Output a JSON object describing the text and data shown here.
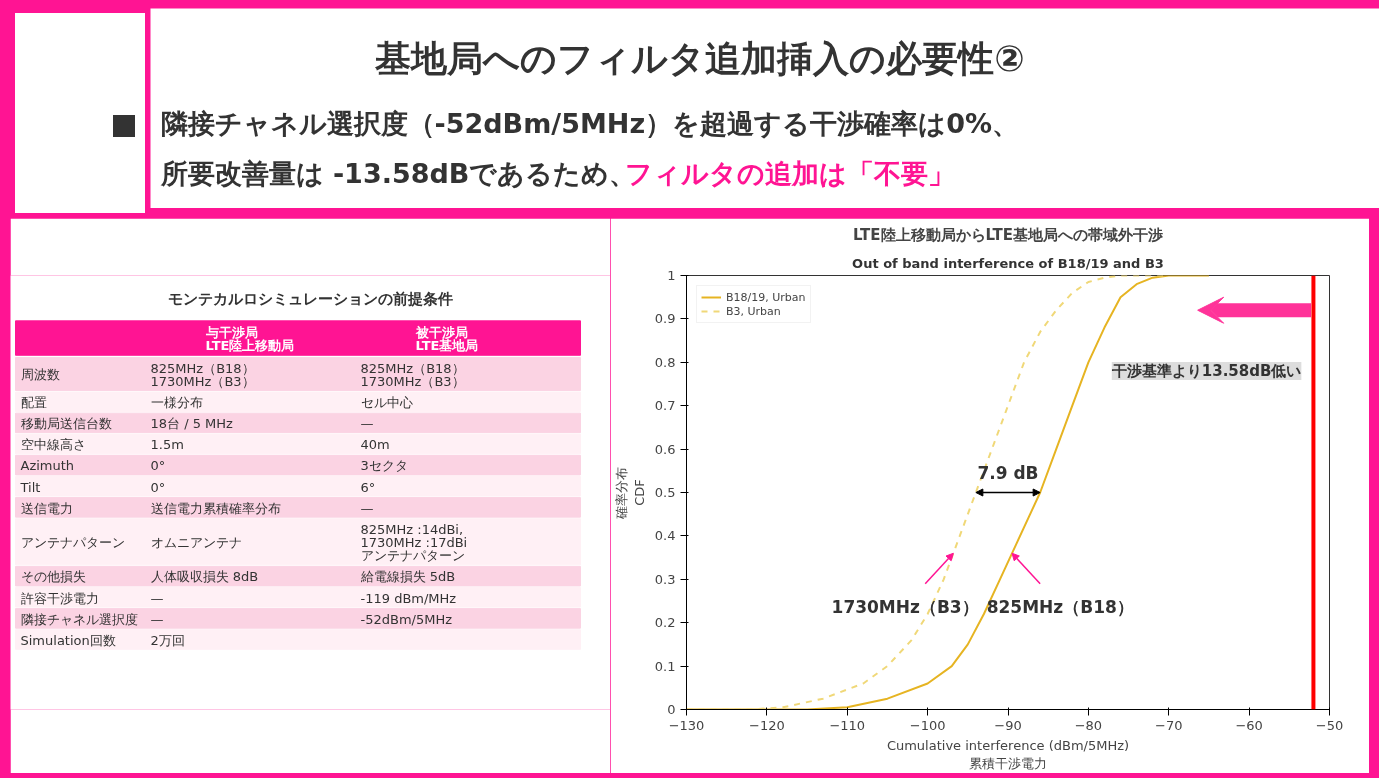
{
  "chart_data": [
    {
      "type": "other",
      "title": "基地局へのフィルタ追加挿入の必要性②",
      "annotations": [
        "隣接チャネル選択度（-52dBm/5MHz）を超過する干渉確率は0%、",
        "所要改善量は -13.58dBであるため、",
        "フィルタの追加は「不要」"
      ],
      "colors": [
        "#333333",
        "#333333",
        "#ff1493"
      ]
    },
    {
      "type": "other",
      "title": "モンテカルロシミュレーションの前提条件",
      "categories": [
        "与干渉局\nLTE陸上移動局",
        "被干渉局\nLTE基地局"
      ],
      "y_categories": [
        "周波数",
        "配置",
        "移動局送信台数",
        "空中線高さ",
        "Azimuth",
        "Tilt",
        "送信電力",
        "アンテナパターン",
        "その他損失",
        "許容干渉電力",
        "隣接チャネル選択度",
        "Simulation回数"
      ],
      "cell_labels": [
        [
          "825MHz（B18）\n1730MHz（B3）",
          "825MHz（B18）\n1730MHz（B3）"
        ],
        [
          "一様分布",
          "セル中心"
        ],
        [
          "18台 / 5 MHz",
          "—"
        ],
        [
          "1.5m",
          "40m"
        ],
        [
          "0°",
          "3セクタ"
        ],
        [
          "0°",
          "6°"
        ],
        [
          "送信電力累積確率分布",
          "—"
        ],
        [
          "オムニアンテナ",
          "825MHz :14dBi,\n1730MHz :17dBi\nアンテナパターン"
        ],
        [
          "人体吸収損失 8dB",
          "給電線損失 5dB"
        ],
        [
          "—",
          "-119 dBm/MHz"
        ],
        [
          "—",
          "-52dBm/5MHz"
        ],
        [
          "2万回",
          null
        ]
      ],
      "color": "#ff1493"
    },
    {
      "type": "line",
      "title": "LTE陸上移動局からLTE基地局への帯域外干渉",
      "subtitle": "Out of band interference of B18/19 and B3",
      "xlabel": "Cumulative interference (dBm/5MHz)\n累積干渉電力",
      "ylabel": "確率分布\nCDF",
      "xlim": [
        -130,
        -50
      ],
      "xticks": [
        -130,
        -120,
        -110,
        -100,
        -90,
        -80,
        -70,
        -60,
        -50
      ],
      "ylim": [
        0,
        1
      ],
      "yticks": [
        0,
        0.1,
        0.2,
        0.3,
        0.4,
        0.5,
        0.6,
        0.7,
        0.8,
        0.9,
        1
      ],
      "legend": "top left",
      "grid": false,
      "series": [
        {
          "name": "B18/19, Urban",
          "color": "#e6b422",
          "line_style": "solid",
          "x": [
            -130,
            -115,
            -110,
            -105,
            -100,
            -97,
            -95,
            -93,
            -91,
            -89,
            -87,
            -86,
            -84,
            -82,
            -80,
            -78,
            -76,
            -74,
            -72,
            -70,
            -65
          ],
          "values": [
            0,
            0,
            0.005,
            0.025,
            0.06,
            0.1,
            0.15,
            0.22,
            0.3,
            0.38,
            0.46,
            0.5,
            0.6,
            0.7,
            0.8,
            0.88,
            0.95,
            0.98,
            0.995,
            1,
            1
          ]
        },
        {
          "name": "B3, Urban",
          "color": "#f0d878",
          "line_style": "dashed",
          "x": [
            -130,
            -122,
            -118,
            -113,
            -108,
            -105,
            -102,
            -100,
            -98,
            -96,
            -94,
            -92,
            -90,
            -88,
            -86,
            -84,
            -82,
            -80,
            -78,
            -76,
            -70
          ],
          "values": [
            0,
            0,
            0.005,
            0.025,
            0.06,
            0.1,
            0.16,
            0.22,
            0.3,
            0.4,
            0.5,
            0.6,
            0.7,
            0.8,
            0.87,
            0.92,
            0.96,
            0.985,
            0.995,
            1,
            1
          ]
        }
      ],
      "ref_lines": [
        {
          "axis": "x",
          "value": -52,
          "color": "#ff0000",
          "label": "干渉基準より13.58dB低い"
        }
      ],
      "annotations": [
        "7.9 dB",
        {
          "text": "1730MHz（B3）",
          "x": -96.8,
          "y": 0.36
        },
        {
          "text": "825MHz（B18）",
          "x": -89.5,
          "y": 0.36
        }
      ]
    }
  ]
}
